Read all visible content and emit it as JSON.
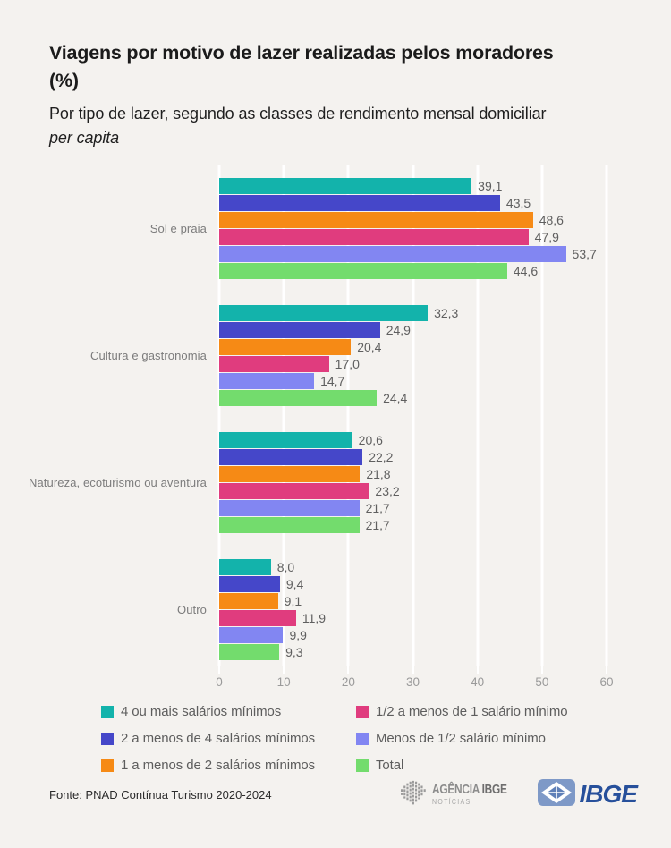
{
  "header": {
    "title": "Viagens por motivo de lazer realizadas pelos moradores (%)",
    "subtitle_text": "Por tipo de lazer, segundo as classes de rendimento mensal domiciliar",
    "subtitle_italic": "per capita"
  },
  "chart_data": {
    "type": "bar",
    "orientation": "horizontal",
    "title": "Viagens por motivo de lazer realizadas pelos moradores (%)",
    "subtitle": "Por tipo de lazer, segundo as classes de rendimento mensal domiciliar per capita",
    "categories": [
      "Sol e praia",
      "Cultura e gastronomia",
      "Natureza, ecoturismo ou aventura",
      "Outro"
    ],
    "series": [
      {
        "name": "4 ou mais salários mínimos",
        "color": "#13B3AB",
        "values": [
          39.1,
          32.3,
          20.6,
          8.0
        ]
      },
      {
        "name": "2 a menos de 4 salários mínimos",
        "color": "#4547C9",
        "values": [
          43.5,
          24.9,
          22.2,
          9.4
        ]
      },
      {
        "name": "1 a menos de 2 salários mínimos",
        "color": "#F68A15",
        "values": [
          48.6,
          20.4,
          21.8,
          9.1
        ]
      },
      {
        "name": "1/2 a menos de 1 salário mínimo",
        "color": "#E03C7E",
        "values": [
          47.9,
          17.0,
          23.2,
          11.9
        ]
      },
      {
        "name": "Menos de 1/2 salário mínimo",
        "color": "#8286F2",
        "values": [
          53.7,
          14.7,
          21.7,
          9.9
        ]
      },
      {
        "name": "Total",
        "color": "#73DC6D",
        "values": [
          44.6,
          24.4,
          21.7,
          9.3
        ]
      }
    ],
    "x_ticks": [
      0,
      10,
      20,
      30,
      40,
      50,
      60
    ],
    "xlim": [
      0,
      60
    ],
    "grid": "vertical-white-lines",
    "legend_position": "bottom-two-columns",
    "decimal_separator": ","
  },
  "footer": {
    "source": "Fonte: PNAD Contínua Turismo 2020-2024",
    "agencia_logo": {
      "word1": "AGÊNCIA",
      "word2": "IBGE",
      "line2": "NOTÍCIAS"
    },
    "ibge_logo": {
      "text": "IBGE"
    }
  },
  "colors": {
    "background": "#F4F2EF",
    "gridline": "#FFFFFF",
    "title_text": "#1B1B1B",
    "category_label": "#7C7C7C",
    "value_label": "#5F5F5F",
    "tick_label": "#9A9A9A",
    "legend_text": "#5D5D5D",
    "source_text": "#2B2B2B",
    "ibge_navy": "#27509B",
    "ibge_icon_blue": "#7E99C7",
    "agencia_gray": "#9B9B9B"
  }
}
